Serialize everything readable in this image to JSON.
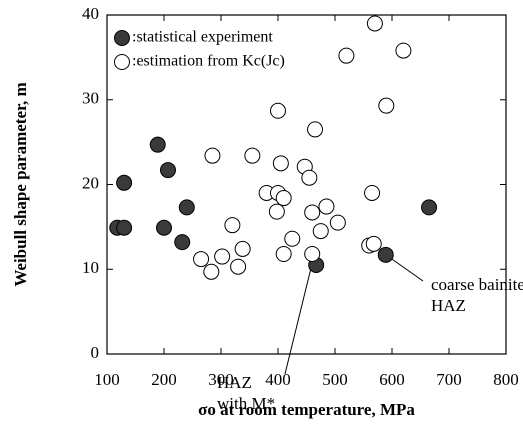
{
  "chart_data": {
    "type": "scatter",
    "xlabel": "σo at room temperature,  MPa",
    "ylabel": "Weibull shape parameter, m",
    "xlim": [
      100,
      800
    ],
    "xticks": [
      100,
      200,
      300,
      400,
      500,
      600,
      700,
      800
    ],
    "ylim": [
      0,
      40
    ],
    "yticks": [
      0,
      10,
      20,
      30,
      40
    ],
    "series": [
      {
        "name": ":statistical experiment",
        "color": "#3a3a3a",
        "x": [
          118,
          130,
          130,
          189,
          207,
          200,
          232,
          240,
          467,
          589,
          665
        ],
        "values": [
          14.9,
          14.9,
          20.2,
          24.7,
          21.7,
          14.9,
          13.2,
          17.3,
          10.5,
          11.7,
          17.3
        ]
      },
      {
        "name": ":estimation from Kc(Jc)",
        "color": "#ffffff",
        "x": [
          570,
          620,
          520,
          590,
          400,
          465,
          355,
          285,
          405,
          447,
          455,
          380,
          400,
          565,
          410,
          398,
          485,
          460,
          505,
          320,
          475,
          425,
          338,
          560,
          568,
          410,
          460,
          302,
          265,
          330,
          283
        ],
        "values": [
          39,
          35.8,
          35.2,
          29.3,
          28.7,
          26.5,
          23.4,
          23.4,
          22.5,
          22.1,
          20.8,
          19,
          19,
          19,
          18.4,
          16.8,
          17.4,
          16.7,
          15.5,
          15.2,
          14.5,
          13.6,
          12.4,
          12.8,
          13,
          11.8,
          11.8,
          11.5,
          11.2,
          10.3,
          9.7
        ]
      }
    ],
    "annotations": [
      {
        "lines": [
          "HAZ",
          "with M*"
        ]
      },
      {
        "lines": [
          "coarse bainite",
          "HAZ"
        ]
      }
    ]
  }
}
